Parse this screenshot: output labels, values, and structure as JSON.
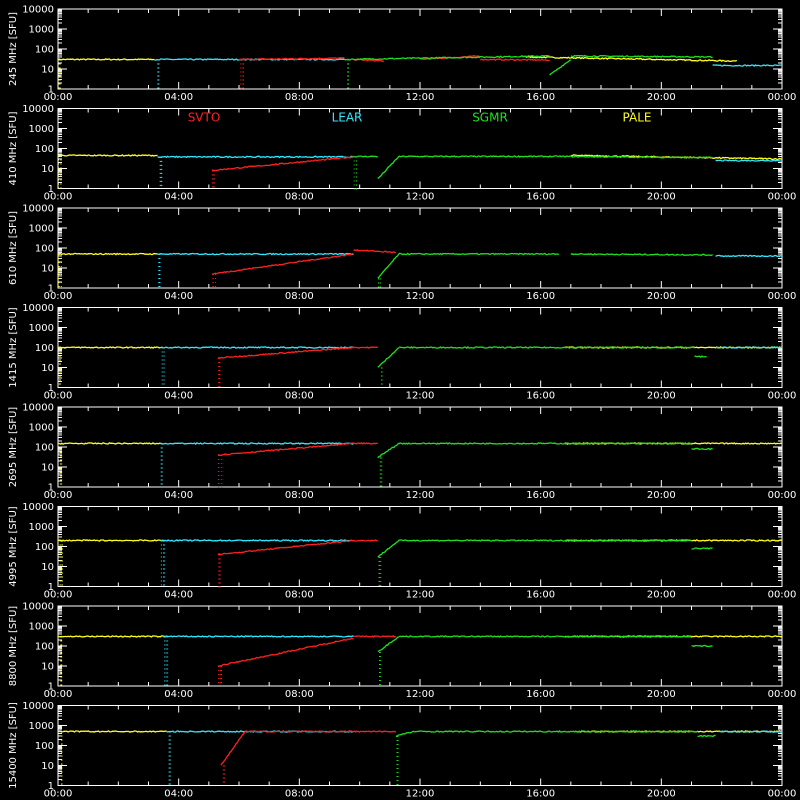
{
  "chart_data": {
    "type": "line",
    "x_axis": {
      "range": [
        "00:00",
        "24:00"
      ],
      "tick_labels": [
        "00:00",
        "04:00",
        "08:00",
        "12:00",
        "16:00",
        "20:00",
        "00:00"
      ]
    },
    "y_axis": {
      "scale": "log",
      "range": [
        1,
        10000
      ],
      "tick_labels": [
        "1",
        "10",
        "100",
        "1000",
        "10000"
      ]
    },
    "legend": [
      {
        "name": "SVTO",
        "color": "#ff2020"
      },
      {
        "name": "LEAR",
        "color": "#30e8ff"
      },
      {
        "name": "SGMR",
        "color": "#20e020"
      },
      {
        "name": "PALE",
        "color": "#ffff20"
      }
    ],
    "panels": [
      {
        "ylabel": "245 MHz [SFU]",
        "base": 30,
        "series": [
          {
            "name": "PALE",
            "segments": [
              [
                0,
                30,
                3.2,
                30
              ],
              [
                15.5,
                40,
                22.5,
                25
              ]
            ]
          },
          {
            "name": "LEAR",
            "segments": [
              [
                3.2,
                30,
                9.5,
                30
              ],
              [
                21.7,
                15,
                24,
                15
              ]
            ]
          },
          {
            "name": "SVTO",
            "segments": [
              [
                6,
                30,
                9.5,
                35
              ],
              [
                9.8,
                30,
                10.8,
                25
              ],
              [
                12,
                30,
                14,
                45
              ],
              [
                14,
                30,
                16.3,
                28
              ]
            ]
          },
          {
            "name": "SGMR",
            "segments": [
              [
                9.5,
                30,
                16.3,
                45
              ],
              [
                16.3,
                5,
                17,
                30
              ],
              [
                17,
                45,
                21.7,
                40
              ]
            ]
          }
        ]
      },
      {
        "ylabel": "410 MHz [SFU]",
        "base": 40,
        "show_legend": true,
        "series": [
          {
            "name": "PALE",
            "segments": [
              [
                0,
                45,
                3.3,
                45
              ],
              [
                17,
                45,
                24,
                30
              ]
            ]
          },
          {
            "name": "LEAR",
            "segments": [
              [
                3.3,
                38,
                9.8,
                38
              ],
              [
                21.8,
                25,
                24,
                25
              ]
            ]
          },
          {
            "name": "SVTO",
            "segments": [
              [
                5.1,
                8,
                9.8,
                38
              ]
            ]
          },
          {
            "name": "SGMR",
            "segments": [
              [
                9.8,
                40,
                10.6,
                40
              ],
              [
                10.6,
                3,
                11.3,
                40
              ],
              [
                11.3,
                40,
                16.6,
                40
              ],
              [
                16.6,
                40,
                21.7,
                35
              ]
            ]
          }
        ]
      },
      {
        "ylabel": "610 MHz [SFU]",
        "base": 50,
        "series": [
          {
            "name": "PALE",
            "segments": [
              [
                0,
                50,
                3.3,
                50
              ]
            ]
          },
          {
            "name": "LEAR",
            "segments": [
              [
                3.3,
                50,
                9.8,
                50
              ],
              [
                21.8,
                40,
                24,
                40
              ]
            ]
          },
          {
            "name": "SVTO",
            "segments": [
              [
                5.1,
                5,
                9.8,
                50
              ],
              [
                9.8,
                80,
                11.2,
                60
              ]
            ]
          },
          {
            "name": "SGMR",
            "segments": [
              [
                10.6,
                3,
                11.3,
                50
              ],
              [
                11.3,
                50,
                16.6,
                50
              ],
              [
                17,
                50,
                21.7,
                45
              ]
            ]
          }
        ]
      },
      {
        "ylabel": "1415 MHz [SFU]",
        "base": 100,
        "series": [
          {
            "name": "PALE",
            "segments": [
              [
                0,
                100,
                3.4,
                100
              ],
              [
                16.8,
                100,
                24,
                100
              ]
            ]
          },
          {
            "name": "LEAR",
            "segments": [
              [
                3.4,
                100,
                9.8,
                100
              ],
              [
                21.8,
                100,
                24,
                100
              ]
            ]
          },
          {
            "name": "SVTO",
            "segments": [
              [
                5.3,
                30,
                9.8,
                100
              ],
              [
                9.8,
                100,
                10.6,
                100
              ]
            ]
          },
          {
            "name": "SGMR",
            "segments": [
              [
                10.6,
                10,
                11.3,
                100
              ],
              [
                11.3,
                100,
                17,
                100
              ],
              [
                17,
                100,
                21.1,
                100
              ],
              [
                21.1,
                35,
                21.5,
                35
              ]
            ]
          }
        ]
      },
      {
        "ylabel": "2695 MHz [SFU]",
        "base": 150,
        "series": [
          {
            "name": "PALE",
            "segments": [
              [
                0,
                150,
                3.4,
                150
              ],
              [
                16.8,
                150,
                24,
                150
              ]
            ]
          },
          {
            "name": "LEAR",
            "segments": [
              [
                3.4,
                150,
                9.8,
                150
              ]
            ]
          },
          {
            "name": "SVTO",
            "segments": [
              [
                5.3,
                40,
                9.8,
                150
              ],
              [
                9.8,
                150,
                10.6,
                150
              ]
            ]
          },
          {
            "name": "SGMR",
            "segments": [
              [
                10.6,
                30,
                11.3,
                150
              ],
              [
                11.3,
                150,
                21,
                150
              ],
              [
                21,
                80,
                21.7,
                80
              ]
            ]
          }
        ]
      },
      {
        "ylabel": "4995 MHz [SFU]",
        "base": 200,
        "series": [
          {
            "name": "PALE",
            "segments": [
              [
                0,
                200,
                3.5,
                200
              ],
              [
                16.8,
                200,
                24,
                200
              ]
            ]
          },
          {
            "name": "LEAR",
            "segments": [
              [
                3.4,
                200,
                9.8,
                200
              ]
            ]
          },
          {
            "name": "SVTO",
            "segments": [
              [
                5.3,
                40,
                9.8,
                200
              ],
              [
                9.8,
                200,
                10.6,
                200
              ]
            ]
          },
          {
            "name": "SGMR",
            "segments": [
              [
                10.6,
                30,
                11.3,
                200
              ],
              [
                11.3,
                200,
                21,
                200
              ],
              [
                21,
                80,
                21.7,
                80
              ]
            ]
          }
        ]
      },
      {
        "ylabel": "8800 MHz [SFU]",
        "base": 300,
        "series": [
          {
            "name": "PALE",
            "segments": [
              [
                0,
                300,
                3.6,
                300
              ],
              [
                16.8,
                300,
                24,
                300
              ]
            ]
          },
          {
            "name": "LEAR",
            "segments": [
              [
                3.5,
                300,
                9.8,
                300
              ]
            ]
          },
          {
            "name": "SVTO",
            "segments": [
              [
                5.3,
                10,
                9.8,
                250
              ],
              [
                9.8,
                300,
                11.2,
                300
              ]
            ]
          },
          {
            "name": "SGMR",
            "segments": [
              [
                10.6,
                50,
                11.3,
                300
              ],
              [
                11.3,
                300,
                21,
                300
              ],
              [
                21,
                100,
                21.7,
                100
              ]
            ]
          }
        ]
      },
      {
        "ylabel": "15400 MHz [SFU]",
        "base": 500,
        "series": [
          {
            "name": "PALE",
            "segments": [
              [
                0,
                500,
                3.6,
                500
              ],
              [
                17.2,
                500,
                24,
                500
              ]
            ]
          },
          {
            "name": "LEAR",
            "segments": [
              [
                3.6,
                500,
                9.8,
                500
              ],
              [
                21.9,
                500,
                24,
                500
              ]
            ]
          },
          {
            "name": "SVTO",
            "segments": [
              [
                5.4,
                10,
                6.2,
                500
              ],
              [
                6.2,
                500,
                11.2,
                500
              ]
            ]
          },
          {
            "name": "SGMR",
            "segments": [
              [
                11.2,
                300,
                11.8,
                500
              ],
              [
                11.8,
                500,
                21.2,
                500
              ],
              [
                21.2,
                300,
                21.8,
                300
              ]
            ]
          }
        ]
      }
    ]
  }
}
